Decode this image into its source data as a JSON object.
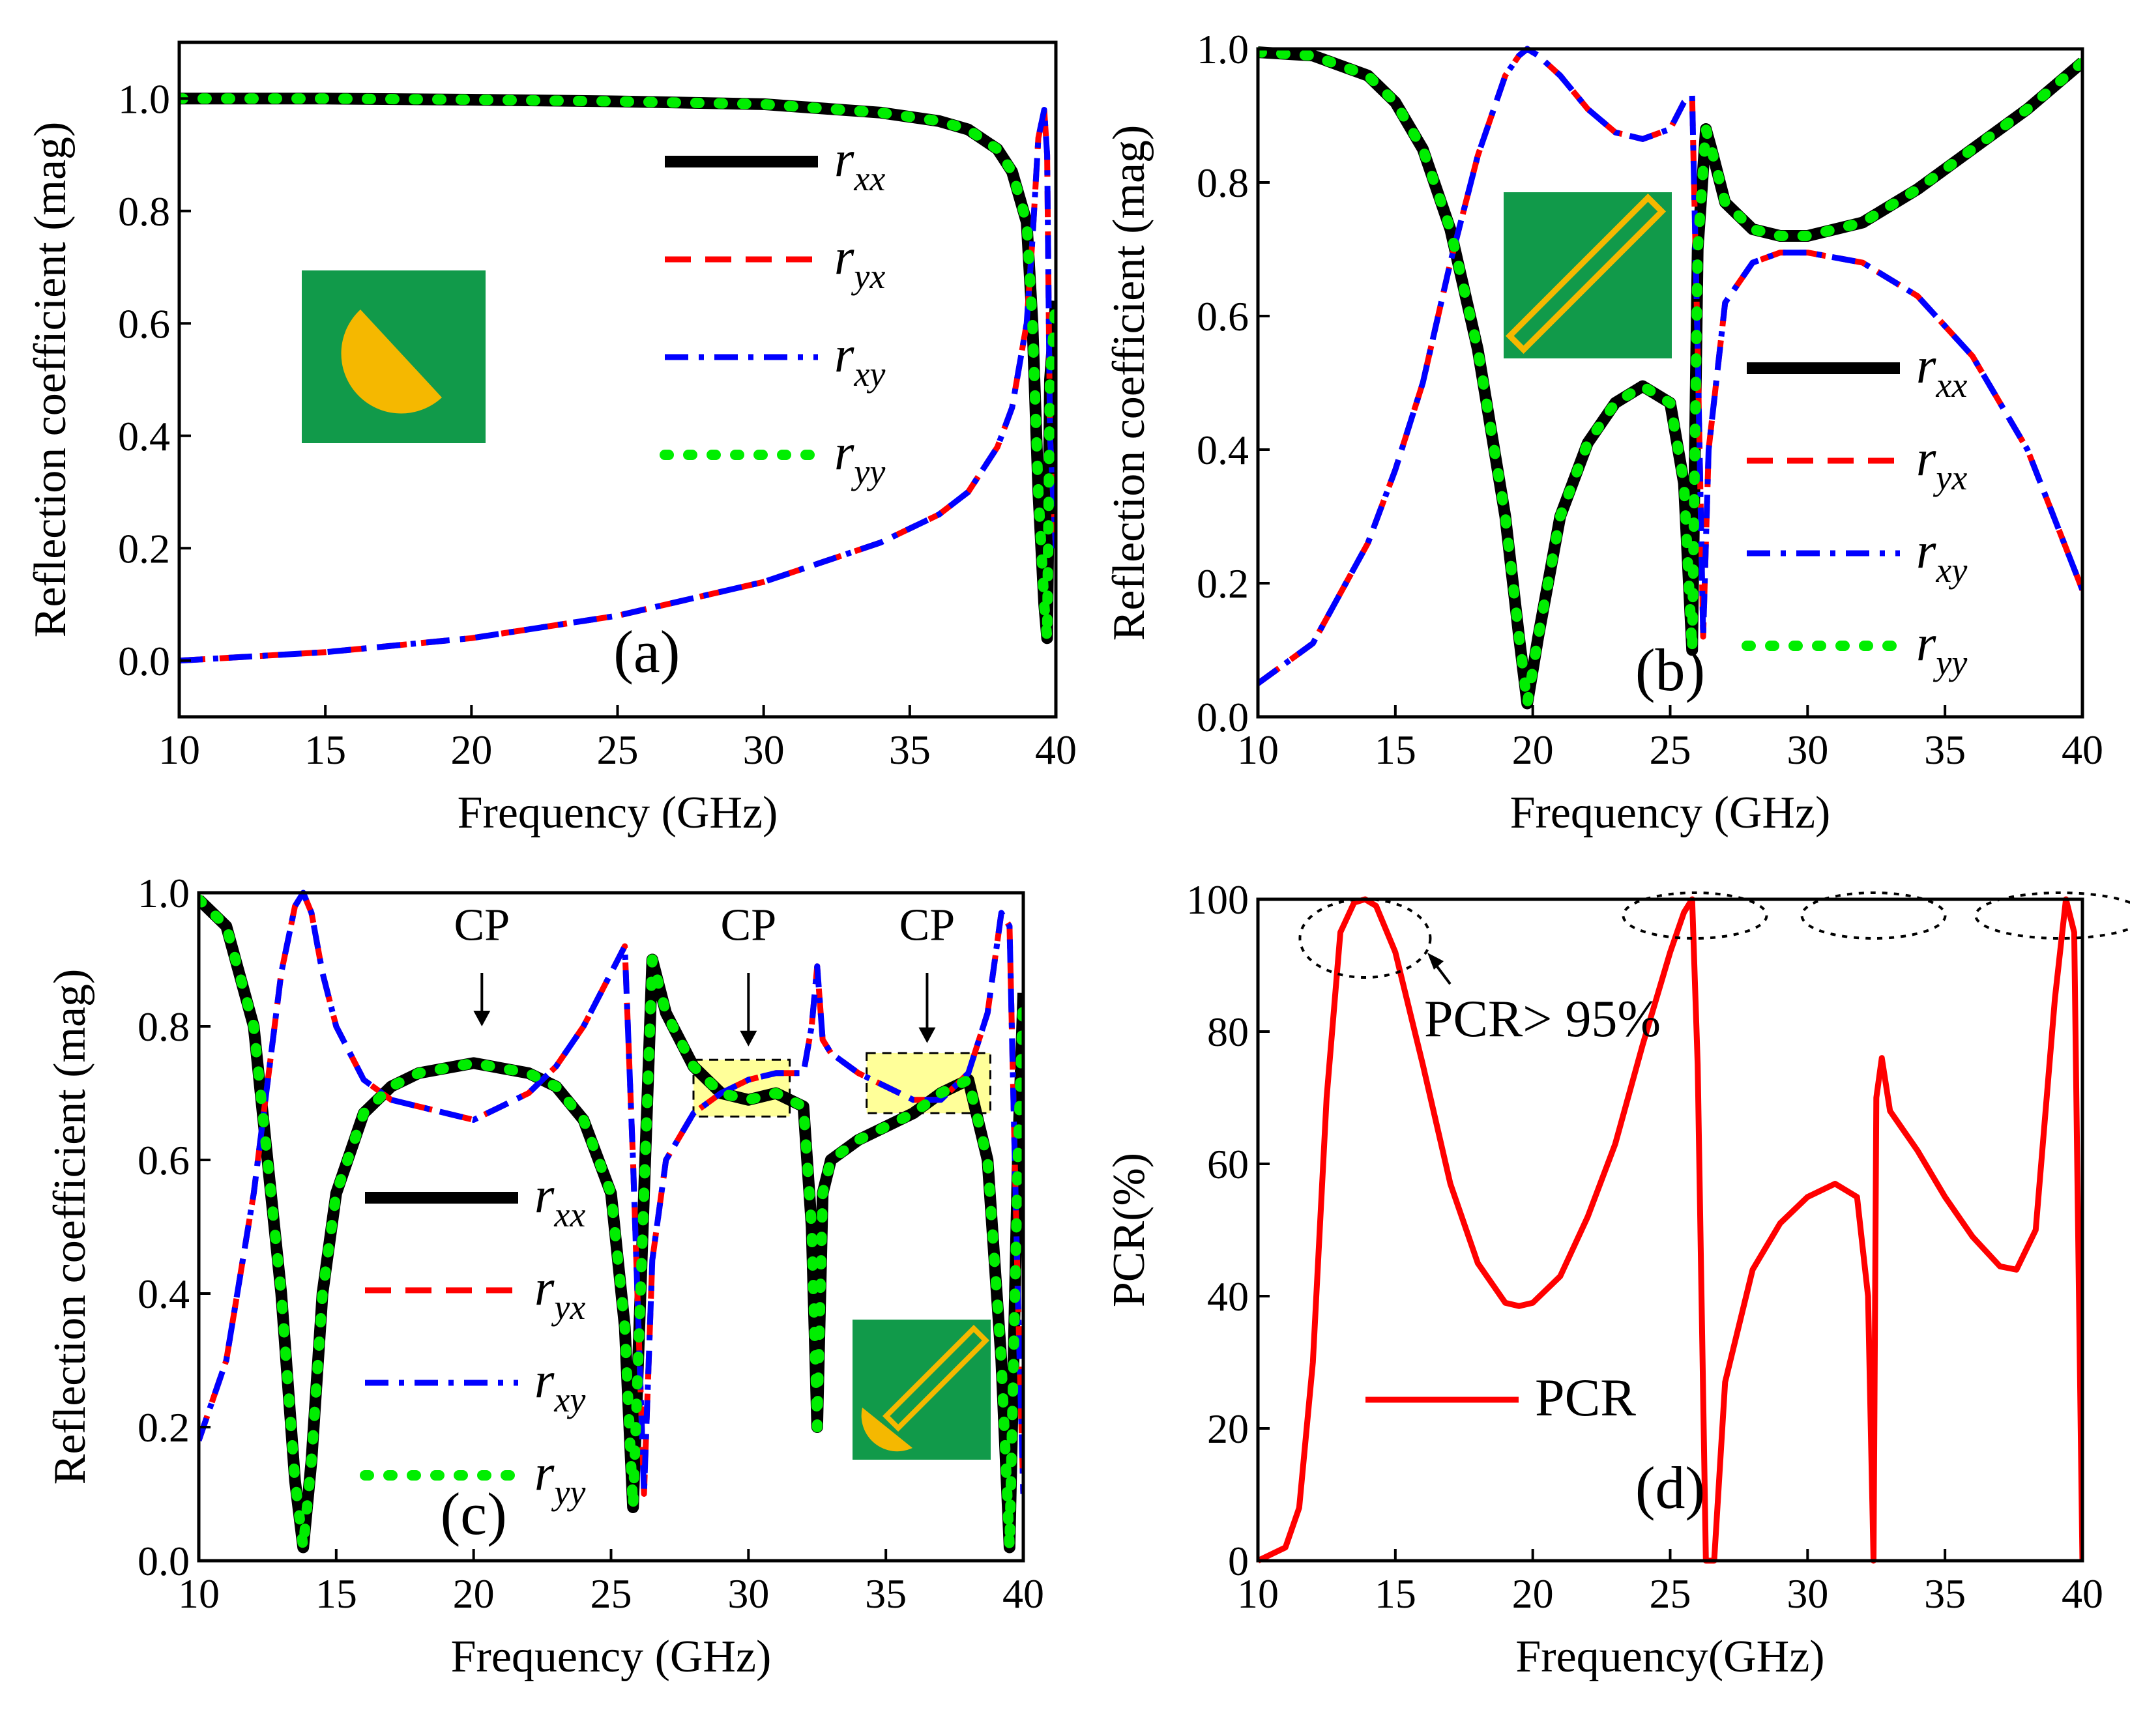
{
  "colors": {
    "rxx": "#000000",
    "ryx": "#ff0000",
    "rxy": "#0000ff",
    "ryy": "#00ee00",
    "pcr": "#ff0000",
    "inset_bg": "#119a4a",
    "inset_shape": "#f5b800",
    "cp_box": "#ffff99"
  },
  "legend_labels": [
    {
      "base": "r",
      "sub": "xx"
    },
    {
      "base": "r",
      "sub": "yx"
    },
    {
      "base": "r",
      "sub": "xy"
    },
    {
      "base": "r",
      "sub": "yy"
    }
  ],
  "chart_data": [
    {
      "type": "line",
      "panel_label": "(a)",
      "xlabel": "Frequency (GHz)",
      "ylabel": "Reflection coefficient (mag)",
      "xlim": [
        10,
        40
      ],
      "ylim": [
        -0.1,
        1.1
      ],
      "xticks": [
        "10",
        "15",
        "20",
        "25",
        "30",
        "35",
        "40"
      ],
      "yticks": [
        "0.0",
        "0.2",
        "0.4",
        "0.6",
        "0.8",
        "1.0"
      ],
      "inset": "half-disk",
      "series": [
        {
          "name": "r_xx",
          "x": [
            10,
            15,
            20,
            25,
            30,
            34,
            36,
            37,
            38,
            38.5,
            39,
            39.2,
            39.4,
            39.6,
            39.7,
            39.8,
            40
          ],
          "y": [
            1.0,
            1.0,
            0.998,
            0.995,
            0.99,
            0.975,
            0.96,
            0.945,
            0.91,
            0.87,
            0.78,
            0.6,
            0.3,
            0.1,
            0.04,
            0.5,
            0.64
          ]
        },
        {
          "name": "r_yx",
          "x": [
            10,
            15,
            20,
            25,
            30,
            34,
            36,
            37,
            38,
            38.5,
            39,
            39.2,
            39.4,
            39.6,
            39.7,
            39.8,
            40
          ],
          "y": [
            0.0,
            0.015,
            0.04,
            0.08,
            0.14,
            0.21,
            0.26,
            0.3,
            0.38,
            0.45,
            0.6,
            0.75,
            0.93,
            0.98,
            0.9,
            0.4,
            0.2
          ]
        },
        {
          "name": "r_xy",
          "x": [
            10,
            15,
            20,
            25,
            30,
            34,
            36,
            37,
            38,
            38.5,
            39,
            39.2,
            39.4,
            39.6,
            39.7,
            39.8,
            40
          ],
          "y": [
            0.0,
            0.015,
            0.04,
            0.08,
            0.14,
            0.21,
            0.26,
            0.3,
            0.38,
            0.45,
            0.6,
            0.75,
            0.93,
            0.98,
            0.9,
            0.4,
            0.2
          ]
        },
        {
          "name": "r_yy",
          "x": [
            10,
            15,
            20,
            25,
            30,
            34,
            36,
            37,
            38,
            38.5,
            39,
            39.2,
            39.4,
            39.6,
            39.7,
            39.8,
            40
          ],
          "y": [
            1.0,
            1.0,
            0.998,
            0.995,
            0.99,
            0.975,
            0.96,
            0.945,
            0.91,
            0.87,
            0.78,
            0.6,
            0.3,
            0.1,
            0.04,
            0.5,
            0.64
          ]
        }
      ]
    },
    {
      "type": "line",
      "panel_label": "(b)",
      "xlabel": "Frequency (GHz)",
      "ylabel": "Reflection coefficient (mag)",
      "xlim": [
        10,
        40
      ],
      "ylim": [
        0.0,
        1.0
      ],
      "xticks": [
        "10",
        "15",
        "20",
        "25",
        "30",
        "35",
        "40"
      ],
      "yticks": [
        "0.0",
        "0.2",
        "0.4",
        "0.6",
        "0.8",
        "1.0"
      ],
      "inset": "rectangular-ring",
      "series": [
        {
          "name": "r_xx",
          "x": [
            10,
            12,
            14,
            15,
            16,
            17,
            18,
            19,
            19.5,
            19.8,
            20.2,
            21,
            22,
            23,
            24,
            25,
            25.5,
            25.8,
            26,
            26.3,
            26.5,
            27,
            28,
            29,
            30,
            32,
            34,
            36,
            38,
            40
          ],
          "y": [
            0.995,
            0.99,
            0.96,
            0.92,
            0.85,
            0.73,
            0.55,
            0.3,
            0.12,
            0.02,
            0.12,
            0.3,
            0.41,
            0.47,
            0.495,
            0.47,
            0.35,
            0.1,
            0.7,
            0.88,
            0.85,
            0.77,
            0.73,
            0.72,
            0.72,
            0.74,
            0.79,
            0.85,
            0.91,
            0.98
          ]
        },
        {
          "name": "r_yx",
          "x": [
            10,
            12,
            14,
            15,
            16,
            17,
            18,
            19,
            19.5,
            19.8,
            20.2,
            21,
            22,
            23,
            24,
            25,
            25.5,
            25.8,
            26,
            26.2,
            26.4,
            27,
            28,
            29,
            30,
            32,
            34,
            36,
            38,
            40
          ],
          "y": [
            0.05,
            0.11,
            0.26,
            0.37,
            0.5,
            0.68,
            0.84,
            0.96,
            0.99,
            1.0,
            0.99,
            0.96,
            0.91,
            0.875,
            0.865,
            0.88,
            0.92,
            0.93,
            0.55,
            0.12,
            0.4,
            0.62,
            0.68,
            0.695,
            0.695,
            0.68,
            0.63,
            0.54,
            0.4,
            0.19
          ]
        },
        {
          "name": "r_xy",
          "x": [
            10,
            12,
            14,
            15,
            16,
            17,
            18,
            19,
            19.5,
            19.8,
            20.2,
            21,
            22,
            23,
            24,
            25,
            25.5,
            25.8,
            26,
            26.2,
            26.4,
            27,
            28,
            29,
            30,
            32,
            34,
            36,
            38,
            40
          ],
          "y": [
            0.05,
            0.11,
            0.26,
            0.37,
            0.5,
            0.68,
            0.84,
            0.96,
            0.99,
            1.0,
            0.99,
            0.96,
            0.91,
            0.875,
            0.865,
            0.88,
            0.92,
            0.93,
            0.55,
            0.12,
            0.4,
            0.62,
            0.68,
            0.695,
            0.695,
            0.68,
            0.63,
            0.54,
            0.4,
            0.19
          ]
        },
        {
          "name": "r_yy",
          "x": [
            10,
            12,
            14,
            15,
            16,
            17,
            18,
            19,
            19.5,
            19.8,
            20.2,
            21,
            22,
            23,
            24,
            25,
            25.5,
            25.8,
            26,
            26.3,
            26.5,
            27,
            28,
            29,
            30,
            32,
            34,
            36,
            38,
            40
          ],
          "y": [
            0.995,
            0.99,
            0.96,
            0.92,
            0.85,
            0.73,
            0.55,
            0.3,
            0.12,
            0.02,
            0.12,
            0.3,
            0.41,
            0.47,
            0.495,
            0.47,
            0.35,
            0.1,
            0.7,
            0.88,
            0.85,
            0.77,
            0.73,
            0.72,
            0.72,
            0.74,
            0.79,
            0.85,
            0.91,
            0.98
          ]
        }
      ]
    },
    {
      "type": "line",
      "panel_label": "(c)",
      "xlabel": "Frequency (GHz)",
      "ylabel": "Reflection coefficient (mag)",
      "xlim": [
        10,
        40
      ],
      "ylim": [
        0.0,
        1.0
      ],
      "xticks": [
        "10",
        "15",
        "20",
        "25",
        "30",
        "35",
        "40"
      ],
      "yticks": [
        "0.0",
        "0.2",
        "0.4",
        "0.6",
        "0.8",
        "1.0"
      ],
      "inset": "half-disk-with-ring",
      "annotations": [
        "CP",
        "CP",
        "CP"
      ],
      "series": [
        {
          "name": "r_xx",
          "x": [
            10,
            11,
            12,
            13,
            13.5,
            13.8,
            14.1,
            14.5,
            15,
            16,
            17,
            18,
            20,
            22,
            23,
            24,
            25,
            25.5,
            25.8,
            26.2,
            26.5,
            27,
            28,
            29,
            30,
            31,
            32,
            32.3,
            32.5,
            32.7,
            33,
            34,
            35,
            36,
            37,
            38,
            38.7,
            39.2,
            39.5,
            39.8,
            40
          ],
          "y": [
            0.99,
            0.95,
            0.8,
            0.4,
            0.12,
            0.02,
            0.15,
            0.4,
            0.55,
            0.67,
            0.71,
            0.73,
            0.745,
            0.73,
            0.71,
            0.66,
            0.55,
            0.35,
            0.08,
            0.55,
            0.9,
            0.82,
            0.74,
            0.7,
            0.69,
            0.7,
            0.68,
            0.5,
            0.2,
            0.55,
            0.6,
            0.63,
            0.65,
            0.67,
            0.7,
            0.72,
            0.6,
            0.3,
            0.02,
            0.6,
            0.85
          ]
        },
        {
          "name": "r_yx",
          "x": [
            10,
            11,
            12,
            13,
            13.5,
            13.8,
            14.1,
            14.5,
            15,
            16,
            17,
            18,
            20,
            22,
            23,
            24,
            25,
            25.5,
            25.8,
            26.2,
            26.5,
            27,
            28,
            29,
            30,
            31,
            32,
            32.3,
            32.5,
            32.7,
            33,
            34,
            35,
            36,
            37,
            38,
            38.7,
            39.2,
            39.5,
            39.8,
            40
          ],
          "y": [
            0.18,
            0.3,
            0.55,
            0.88,
            0.98,
            1.0,
            0.97,
            0.88,
            0.8,
            0.72,
            0.69,
            0.68,
            0.66,
            0.7,
            0.74,
            0.8,
            0.88,
            0.92,
            0.6,
            0.1,
            0.45,
            0.6,
            0.67,
            0.7,
            0.72,
            0.73,
            0.73,
            0.8,
            0.89,
            0.78,
            0.76,
            0.73,
            0.71,
            0.69,
            0.69,
            0.73,
            0.82,
            0.97,
            0.95,
            0.4,
            0.1
          ]
        },
        {
          "name": "r_xy",
          "x": [
            10,
            11,
            12,
            13,
            13.5,
            13.8,
            14.1,
            14.5,
            15,
            16,
            17,
            18,
            20,
            22,
            23,
            24,
            25,
            25.5,
            25.8,
            26.2,
            26.5,
            27,
            28,
            29,
            30,
            31,
            32,
            32.3,
            32.5,
            32.7,
            33,
            34,
            35,
            36,
            37,
            38,
            38.7,
            39.2,
            39.5,
            39.8,
            40
          ],
          "y": [
            0.18,
            0.3,
            0.55,
            0.88,
            0.98,
            1.0,
            0.97,
            0.88,
            0.8,
            0.72,
            0.69,
            0.68,
            0.66,
            0.7,
            0.74,
            0.8,
            0.88,
            0.92,
            0.6,
            0.1,
            0.45,
            0.6,
            0.67,
            0.7,
            0.72,
            0.73,
            0.73,
            0.8,
            0.89,
            0.78,
            0.76,
            0.73,
            0.71,
            0.69,
            0.69,
            0.73,
            0.82,
            0.97,
            0.95,
            0.4,
            0.1
          ]
        },
        {
          "name": "r_yy",
          "x": [
            10,
            11,
            12,
            13,
            13.5,
            13.8,
            14.1,
            14.5,
            15,
            16,
            17,
            18,
            20,
            22,
            23,
            24,
            25,
            25.5,
            25.8,
            26.2,
            26.5,
            27,
            28,
            29,
            30,
            31,
            32,
            32.3,
            32.5,
            32.7,
            33,
            34,
            35,
            36,
            37,
            38,
            38.7,
            39.2,
            39.5,
            39.8,
            40
          ],
          "y": [
            0.99,
            0.95,
            0.8,
            0.4,
            0.12,
            0.02,
            0.15,
            0.4,
            0.55,
            0.67,
            0.71,
            0.73,
            0.745,
            0.73,
            0.71,
            0.66,
            0.55,
            0.35,
            0.08,
            0.55,
            0.9,
            0.82,
            0.74,
            0.7,
            0.69,
            0.7,
            0.68,
            0.5,
            0.2,
            0.55,
            0.6,
            0.63,
            0.65,
            0.67,
            0.7,
            0.72,
            0.6,
            0.3,
            0.02,
            0.6,
            0.85
          ]
        }
      ]
    },
    {
      "type": "line",
      "panel_label": "(d)",
      "xlabel": "Frequency(GHz)",
      "ylabel": "PCR(%)",
      "xlim": [
        10,
        40
      ],
      "ylim": [
        0,
        100
      ],
      "xticks": [
        "10",
        "15",
        "20",
        "25",
        "30",
        "35",
        "40"
      ],
      "yticks": [
        "0",
        "20",
        "40",
        "60",
        "80",
        "100"
      ],
      "annotation": "PCR> 95%",
      "series": [
        {
          "name": "PCR",
          "x": [
            10,
            11,
            11.5,
            12,
            12.5,
            13,
            13.5,
            13.9,
            14.3,
            15,
            16,
            17,
            18,
            19,
            19.5,
            20,
            21,
            22,
            23,
            24,
            25,
            25.5,
            25.8,
            26,
            26.3,
            26.6,
            27,
            28,
            29,
            30,
            31,
            31.8,
            32.2,
            32.4,
            32.5,
            32.7,
            33,
            34,
            35,
            36,
            37,
            37.6,
            38.3,
            39,
            39.4,
            39.7,
            40
          ],
          "y": [
            0,
            2,
            8,
            30,
            70,
            95,
            99.5,
            100,
            99,
            92,
            75,
            57,
            45,
            39,
            38.5,
            39,
            43,
            52,
            63,
            78,
            92,
            98,
            100,
            75,
            0,
            0,
            27,
            44,
            51,
            55,
            57,
            55,
            40,
            0,
            70,
            76,
            68,
            62,
            55,
            49,
            44.5,
            44,
            50,
            85,
            100,
            95,
            0
          ]
        }
      ]
    }
  ]
}
